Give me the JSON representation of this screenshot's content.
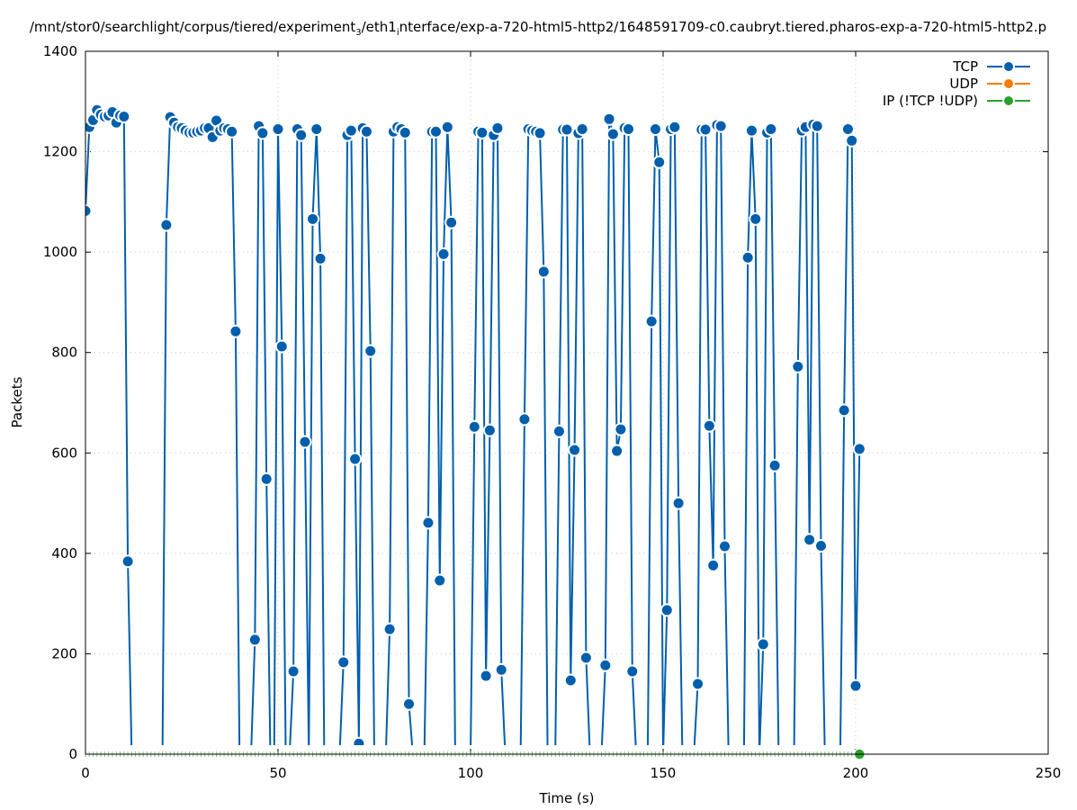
{
  "chart_data": {
    "type": "line",
    "title": "/mnt/stor0/searchlight/corpus/tiered/experiment_3/eth1_interface/exp-a-720-html5-http2/1648591709-c0.caubryt.tiered.pharos-exp-a-720-html5-http2.p",
    "xlabel": "Time (s)",
    "ylabel": "Packets",
    "xlim": [
      0,
      250
    ],
    "ylim": [
      0,
      1400
    ],
    "xticks": [
      0,
      50,
      100,
      150,
      200,
      250
    ],
    "yticks": [
      0,
      200,
      400,
      600,
      800,
      1000,
      1200,
      1400
    ],
    "grid": true,
    "legend_placement": "top-right",
    "series": [
      {
        "name": "TCP",
        "color": "#005fad",
        "x": [
          0,
          1,
          2,
          3,
          4,
          5,
          6,
          7,
          8,
          9,
          10,
          11,
          12,
          13,
          14,
          15,
          16,
          17,
          18,
          19,
          20,
          21,
          22,
          23,
          24,
          25,
          26,
          27,
          28,
          29,
          30,
          31,
          32,
          33,
          34,
          35,
          36,
          37,
          38,
          39,
          40,
          41,
          42,
          43,
          44,
          45,
          46,
          47,
          48,
          49,
          50,
          51,
          52,
          53,
          54,
          55,
          56,
          57,
          58,
          59,
          60,
          61,
          62,
          63,
          64,
          65,
          66,
          67,
          68,
          69,
          70,
          71,
          72,
          73,
          74,
          75,
          76,
          77,
          78,
          79,
          80,
          81,
          82,
          83,
          84,
          85,
          86,
          87,
          88,
          89,
          90,
          91,
          92,
          93,
          94,
          95,
          96,
          97,
          98,
          99,
          100,
          101,
          102,
          103,
          104,
          105,
          106,
          107,
          108,
          109,
          110,
          111,
          112,
          113,
          114,
          115,
          116,
          117,
          118,
          119,
          120,
          121,
          122,
          123,
          124,
          125,
          126,
          127,
          128,
          129,
          130,
          131,
          132,
          133,
          134,
          135,
          136,
          137,
          138,
          139,
          140,
          141,
          142,
          143,
          144,
          145,
          146,
          147,
          148,
          149,
          150,
          151,
          152,
          153,
          154,
          155,
          156,
          157,
          158,
          159,
          160,
          161,
          162,
          163,
          164,
          165,
          166,
          167,
          168,
          169,
          170,
          171,
          172,
          173,
          174,
          175,
          176,
          177,
          178,
          179,
          180,
          181,
          182,
          183,
          184,
          185,
          186,
          187,
          188,
          189,
          190,
          191,
          192,
          193,
          194,
          195,
          196,
          197,
          198,
          199,
          200,
          201
        ],
        "values": [
          1082,
          1249,
          1263,
          1283,
          1274,
          1270,
          1272,
          1279,
          1258,
          1272,
          1270,
          384,
          0,
          0,
          0,
          0,
          0,
          0,
          0,
          0,
          0,
          1054,
          1269,
          1258,
          1249,
          1247,
          1242,
          1238,
          1238,
          1240,
          1242,
          1247,
          1247,
          1229,
          1262,
          1242,
          1247,
          1245,
          1240,
          842,
          0,
          0,
          0,
          0,
          228,
          1251,
          1237,
          548,
          0,
          0,
          1245,
          812,
          0,
          0,
          165,
          1245,
          1233,
          622,
          0,
          1066,
          1245,
          987,
          0,
          0,
          0,
          0,
          0,
          183,
          1233,
          1242,
          588,
          21,
          1247,
          1240,
          803,
          0,
          0,
          0,
          0,
          249,
          1240,
          1249,
          1245,
          1238,
          100,
          0,
          0,
          0,
          0,
          461,
          1240,
          1240,
          346,
          996,
          1249,
          1059,
          0,
          0,
          0,
          0,
          0,
          652,
          1240,
          1238,
          156,
          645,
          1233,
          1247,
          168,
          0,
          0,
          0,
          0,
          0,
          667,
          1245,
          1242,
          1240,
          1237,
          961,
          0,
          0,
          0,
          643,
          1244,
          1244,
          147,
          606,
          1237,
          1245,
          192,
          0,
          0,
          0,
          0,
          177,
          1265,
          1235,
          604,
          647,
          1247,
          1245,
          165,
          0,
          0,
          0,
          0,
          862,
          1245,
          1179,
          0,
          287,
          1245,
          1249,
          500,
          0,
          0,
          0,
          0,
          140,
          1244,
          1244,
          654,
          376,
          1253,
          1251,
          414,
          0,
          0,
          0,
          0,
          0,
          989,
          1242,
          1066,
          0,
          219,
          1238,
          1245,
          575,
          0,
          0,
          0,
          0,
          0,
          772,
          1242,
          1249,
          427,
          1254,
          1251,
          415,
          0,
          0,
          0,
          0,
          0,
          685,
          1245,
          1222,
          136,
          608
        ]
      },
      {
        "name": "UDP",
        "color": "#f57c00",
        "x": [],
        "values": []
      },
      {
        "name": "IP (!TCP  !UDP)",
        "color": "#2ca02c",
        "x_range": [
          0,
          201
        ],
        "constant_value": 0
      }
    ]
  }
}
